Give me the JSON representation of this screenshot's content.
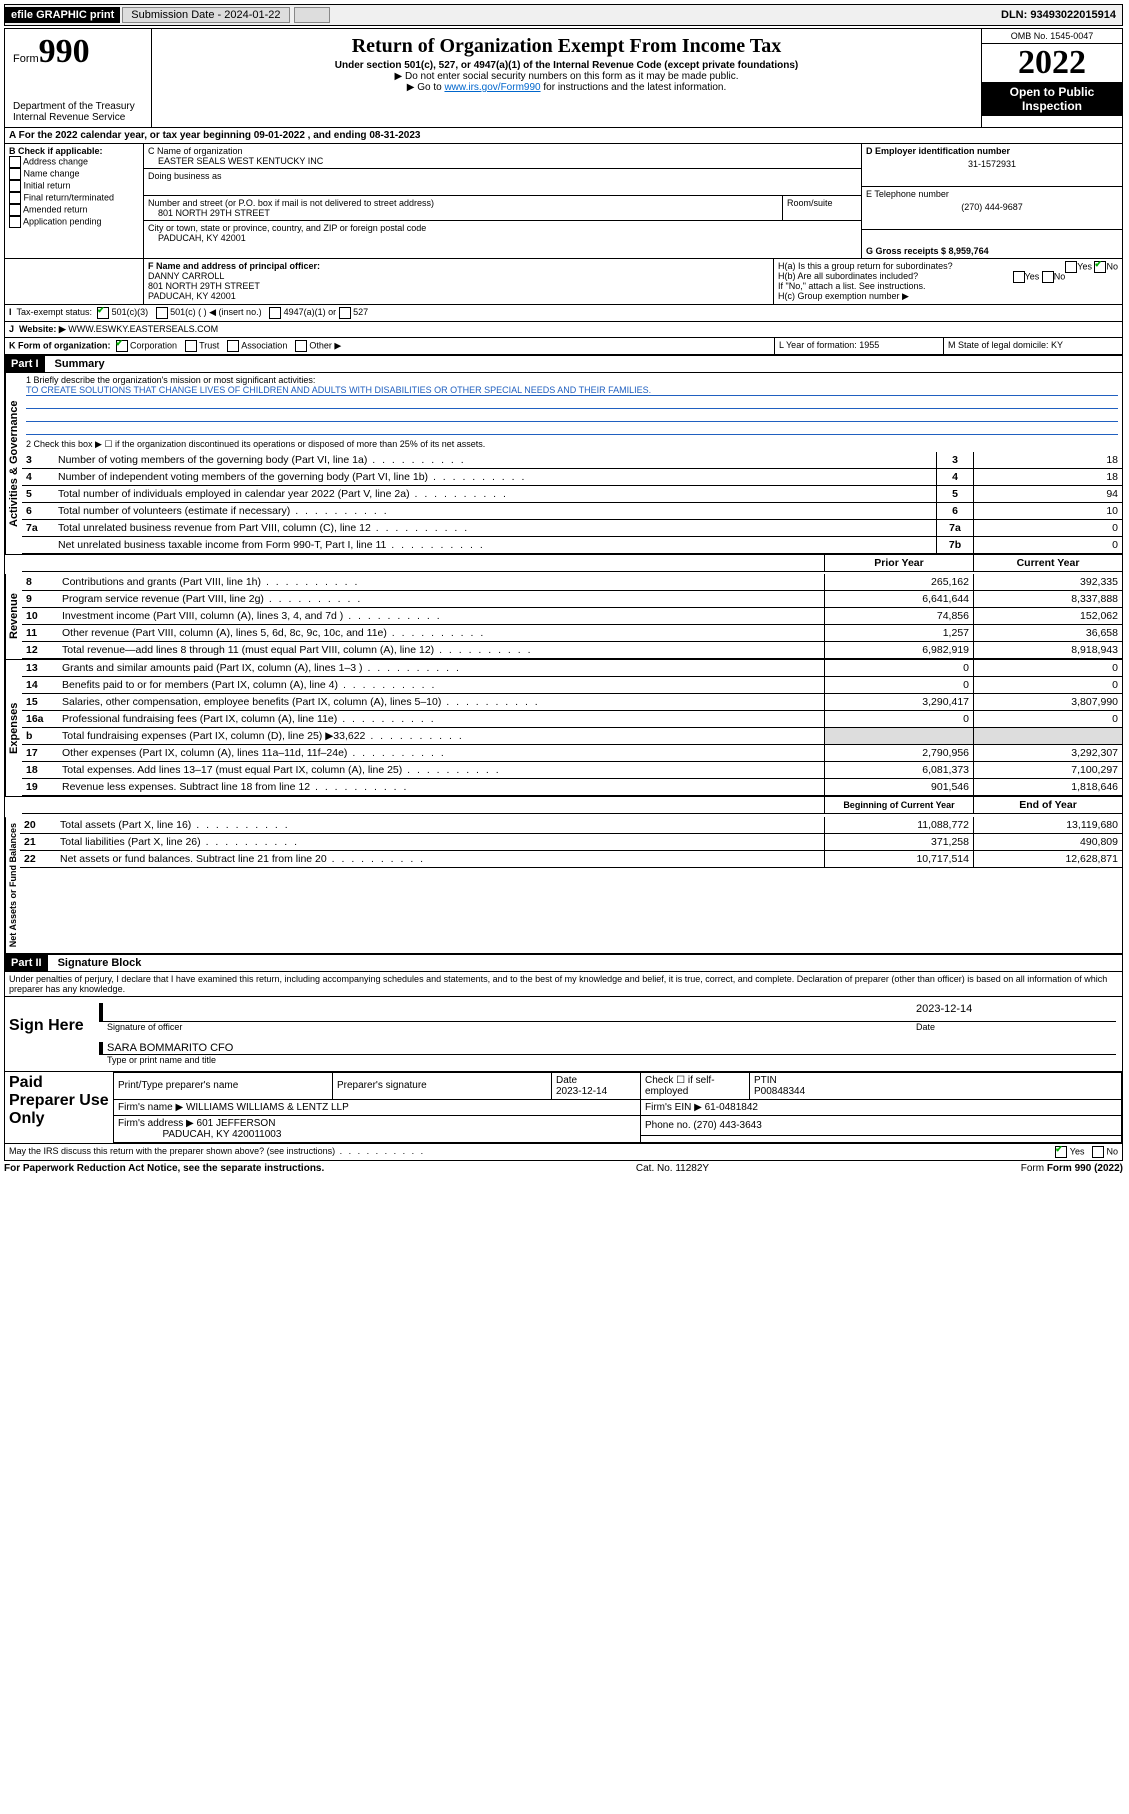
{
  "topbar": {
    "efile": "efile GRAPHIC print",
    "subdate_label": "Submission Date - 2024-01-22",
    "dln_label": "DLN: 93493022015914"
  },
  "header": {
    "form_word": "Form",
    "form_num": "990",
    "title": "Return of Organization Exempt From Income Tax",
    "subtitle": "Under section 501(c), 527, or 4947(a)(1) of the Internal Revenue Code (except private foundations)",
    "note1": "▶ Do not enter social security numbers on this form as it may be made public.",
    "note2_pre": "▶ Go to ",
    "note2_link": "www.irs.gov/Form990",
    "note2_post": " for instructions and the latest information.",
    "dept": "Department of the Treasury",
    "irs": "Internal Revenue Service",
    "omb": "OMB No. 1545-0047",
    "year": "2022",
    "inspect": "Open to Public Inspection"
  },
  "A": {
    "label": "A For the 2022 calendar year, or tax year beginning 09-01-2022   , and ending 08-31-2023"
  },
  "B": {
    "label": "B Check if applicable:",
    "opts": [
      "Address change",
      "Name change",
      "Initial return",
      "Final return/terminated",
      "Amended return",
      "Application pending"
    ]
  },
  "C": {
    "name_lbl": "C Name of organization",
    "name": "EASTER SEALS WEST KENTUCKY INC",
    "dba_lbl": "Doing business as",
    "street_lbl": "Number and street (or P.O. box if mail is not delivered to street address)",
    "room_lbl": "Room/suite",
    "street": "801 NORTH 29TH STREET",
    "city_lbl": "City or town, state or province, country, and ZIP or foreign postal code",
    "city": "PADUCAH, KY  42001"
  },
  "D": {
    "lbl": "D Employer identification number",
    "val": "31-1572931"
  },
  "E": {
    "lbl": "E Telephone number",
    "val": "(270) 444-9687"
  },
  "G": {
    "lbl": "G Gross receipts $ 8,959,764"
  },
  "F": {
    "lbl": "F Name and address of principal officer:",
    "name": "DANNY CARROLL",
    "addr1": "801 NORTH 29TH STREET",
    "addr2": "PADUCAH, KY  42001"
  },
  "H": {
    "a": "H(a)  Is this a group return for subordinates?",
    "a_yes": "Yes",
    "a_no": "No",
    "b": "H(b)  Are all subordinates included?",
    "b_yes": "Yes",
    "b_no": "No",
    "b_note": "If \"No,\" attach a list. See instructions.",
    "c": "H(c)  Group exemption number ▶"
  },
  "I": {
    "lbl": "Tax-exempt status:",
    "o1": "501(c)(3)",
    "o2": "501(c) (  ) ◀ (insert no.)",
    "o3": "4947(a)(1) or",
    "o4": "527"
  },
  "J": {
    "lbl": "Website: ▶",
    "val": "WWW.ESWKY.EASTERSEALS.COM"
  },
  "K": {
    "lbl": "K Form of organization:",
    "o1": "Corporation",
    "o2": "Trust",
    "o3": "Association",
    "o4": "Other ▶"
  },
  "L": {
    "lbl": "L Year of formation: 1955"
  },
  "M": {
    "lbl": "M State of legal domicile: KY"
  },
  "part1": {
    "hdr": "Part I",
    "title": "Summary"
  },
  "q1": {
    "lbl": "1  Briefly describe the organization's mission or most significant activities:",
    "val": "TO CREATE SOLUTIONS THAT CHANGE LIVES OF CHILDREN AND ADULTS WITH DISABILITIES OR OTHER SPECIAL NEEDS AND THEIR FAMILIES."
  },
  "q2": "2   Check this box ▶ ☐  if the organization discontinued its operations or disposed of more than 25% of its net assets.",
  "lines_ag": [
    {
      "n": "3",
      "t": "Number of voting members of the governing body (Part VI, line 1a)",
      "box": "3",
      "v": "18"
    },
    {
      "n": "4",
      "t": "Number of independent voting members of the governing body (Part VI, line 1b)",
      "box": "4",
      "v": "18"
    },
    {
      "n": "5",
      "t": "Total number of individuals employed in calendar year 2022 (Part V, line 2a)",
      "box": "5",
      "v": "94"
    },
    {
      "n": "6",
      "t": "Total number of volunteers (estimate if necessary)",
      "box": "6",
      "v": "10"
    },
    {
      "n": "7a",
      "t": "Total unrelated business revenue from Part VIII, column (C), line 12",
      "box": "7a",
      "v": "0"
    },
    {
      "n": "",
      "t": "Net unrelated business taxable income from Form 990-T, Part I, line 11",
      "box": "7b",
      "v": "0"
    }
  ],
  "col_hdr": {
    "prior": "Prior Year",
    "current": "Current Year"
  },
  "rev": [
    {
      "n": "8",
      "t": "Contributions and grants (Part VIII, line 1h)",
      "p": "265,162",
      "c": "392,335"
    },
    {
      "n": "9",
      "t": "Program service revenue (Part VIII, line 2g)",
      "p": "6,641,644",
      "c": "8,337,888"
    },
    {
      "n": "10",
      "t": "Investment income (Part VIII, column (A), lines 3, 4, and 7d )",
      "p": "74,856",
      "c": "152,062"
    },
    {
      "n": "11",
      "t": "Other revenue (Part VIII, column (A), lines 5, 6d, 8c, 9c, 10c, and 11e)",
      "p": "1,257",
      "c": "36,658"
    },
    {
      "n": "12",
      "t": "Total revenue—add lines 8 through 11 (must equal Part VIII, column (A), line 12)",
      "p": "6,982,919",
      "c": "8,918,943"
    }
  ],
  "exp": [
    {
      "n": "13",
      "t": "Grants and similar amounts paid (Part IX, column (A), lines 1–3 )",
      "p": "0",
      "c": "0"
    },
    {
      "n": "14",
      "t": "Benefits paid to or for members (Part IX, column (A), line 4)",
      "p": "0",
      "c": "0"
    },
    {
      "n": "15",
      "t": "Salaries, other compensation, employee benefits (Part IX, column (A), lines 5–10)",
      "p": "3,290,417",
      "c": "3,807,990"
    },
    {
      "n": "16a",
      "t": "Professional fundraising fees (Part IX, column (A), line 11e)",
      "p": "0",
      "c": "0"
    },
    {
      "n": "b",
      "t": "Total fundraising expenses (Part IX, column (D), line 25) ▶33,622",
      "p": "",
      "c": "",
      "shade": true
    },
    {
      "n": "17",
      "t": "Other expenses (Part IX, column (A), lines 11a–11d, 11f–24e)",
      "p": "2,790,956",
      "c": "3,292,307"
    },
    {
      "n": "18",
      "t": "Total expenses. Add lines 13–17 (must equal Part IX, column (A), line 25)",
      "p": "6,081,373",
      "c": "7,100,297"
    },
    {
      "n": "19",
      "t": "Revenue less expenses. Subtract line 18 from line 12",
      "p": "901,546",
      "c": "1,818,646"
    }
  ],
  "col_hdr2": {
    "begin": "Beginning of Current Year",
    "end": "End of Year"
  },
  "net": [
    {
      "n": "20",
      "t": "Total assets (Part X, line 16)",
      "p": "11,088,772",
      "c": "13,119,680"
    },
    {
      "n": "21",
      "t": "Total liabilities (Part X, line 26)",
      "p": "371,258",
      "c": "490,809"
    },
    {
      "n": "22",
      "t": "Net assets or fund balances. Subtract line 21 from line 20",
      "p": "10,717,514",
      "c": "12,628,871"
    }
  ],
  "vtabs": {
    "ag": "Activities & Governance",
    "rev": "Revenue",
    "exp": "Expenses",
    "net": "Net Assets or Fund Balances"
  },
  "part2": {
    "hdr": "Part II",
    "title": "Signature Block"
  },
  "penalty": "Under penalties of perjury, I declare that I have examined this return, including accompanying schedules and statements, and to the best of my knowledge and belief, it is true, correct, and complete. Declaration of preparer (other than officer) is based on all information of which preparer has any knowledge.",
  "sign": {
    "here": "Sign Here",
    "sig_officer": "Signature of officer",
    "date": "Date",
    "date_val": "2023-12-14",
    "name": "SARA BOMMARITO CFO",
    "name_lbl": "Type or print name and title"
  },
  "paid": {
    "title": "Paid Preparer Use Only",
    "h1": "Print/Type preparer's name",
    "h2": "Preparer's signature",
    "h3": "Date",
    "h3v": "2023-12-14",
    "h4": "Check ☐ if self-employed",
    "h5": "PTIN",
    "h5v": "P00848344",
    "firm_lbl": "Firm's name   ▶",
    "firm": "WILLIAMS WILLIAMS & LENTZ LLP",
    "ein_lbl": "Firm's EIN ▶",
    "ein": "61-0481842",
    "addr_lbl": "Firm's address ▶",
    "addr": "601 JEFFERSON",
    "addr2": "PADUCAH, KY  420011003",
    "phone_lbl": "Phone no.",
    "phone": "(270) 443-3643"
  },
  "discuss": {
    "q": "May the IRS discuss this return with the preparer shown above? (see instructions)",
    "yes": "Yes",
    "no": "No"
  },
  "footer": {
    "left": "For Paperwork Reduction Act Notice, see the separate instructions.",
    "mid": "Cat. No. 11282Y",
    "right": "Form 990 (2022)"
  }
}
